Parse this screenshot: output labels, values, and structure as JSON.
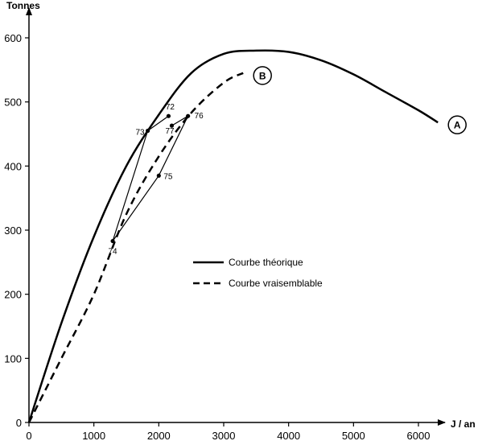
{
  "chart_data": {
    "type": "line",
    "xlabel": "J / an",
    "ylabel": "Tonnes",
    "xlim": [
      0,
      6600
    ],
    "ylim": [
      0,
      640
    ],
    "x_ticks": [
      0,
      1000,
      2000,
      3000,
      4000,
      5000,
      6000
    ],
    "y_ticks": [
      0,
      100,
      200,
      300,
      400,
      500,
      600
    ],
    "x_tick_labels": [
      "0",
      "1000",
      "2000",
      "3000",
      "4000",
      "5000",
      "6000"
    ],
    "y_tick_labels": [
      "0",
      "100",
      "200",
      "300",
      "400",
      "500",
      "600"
    ],
    "grid": false,
    "legend_position": "center-right",
    "series": [
      {
        "name": "Courbe théorique",
        "tag": "A",
        "style": "solid",
        "points": [
          [
            0,
            0
          ],
          [
            500,
            155
          ],
          [
            1000,
            290
          ],
          [
            1500,
            400
          ],
          [
            2000,
            480
          ],
          [
            2500,
            545
          ],
          [
            3000,
            575
          ],
          [
            3500,
            580
          ],
          [
            4000,
            578
          ],
          [
            4500,
            565
          ],
          [
            5000,
            543
          ],
          [
            5500,
            515
          ],
          [
            6000,
            487
          ],
          [
            6300,
            468
          ]
        ]
      },
      {
        "name": "Courbe vraisemblable",
        "tag": "B",
        "style": "dashed",
        "points": [
          [
            0,
            0
          ],
          [
            500,
            100
          ],
          [
            1000,
            200
          ],
          [
            1500,
            325
          ],
          [
            2000,
            415
          ],
          [
            2500,
            483
          ],
          [
            3000,
            530
          ],
          [
            3300,
            545
          ]
        ]
      }
    ],
    "observations": {
      "style": "solid-thin",
      "points": [
        {
          "label": "72",
          "x": 2150,
          "y": 478
        },
        {
          "label": "73",
          "x": 1830,
          "y": 455
        },
        {
          "label": "74",
          "x": 1290,
          "y": 283
        },
        {
          "label": "75",
          "x": 2000,
          "y": 385
        },
        {
          "label": "76",
          "x": 2450,
          "y": 478
        },
        {
          "label": "77",
          "x": 2200,
          "y": 463
        }
      ]
    }
  }
}
